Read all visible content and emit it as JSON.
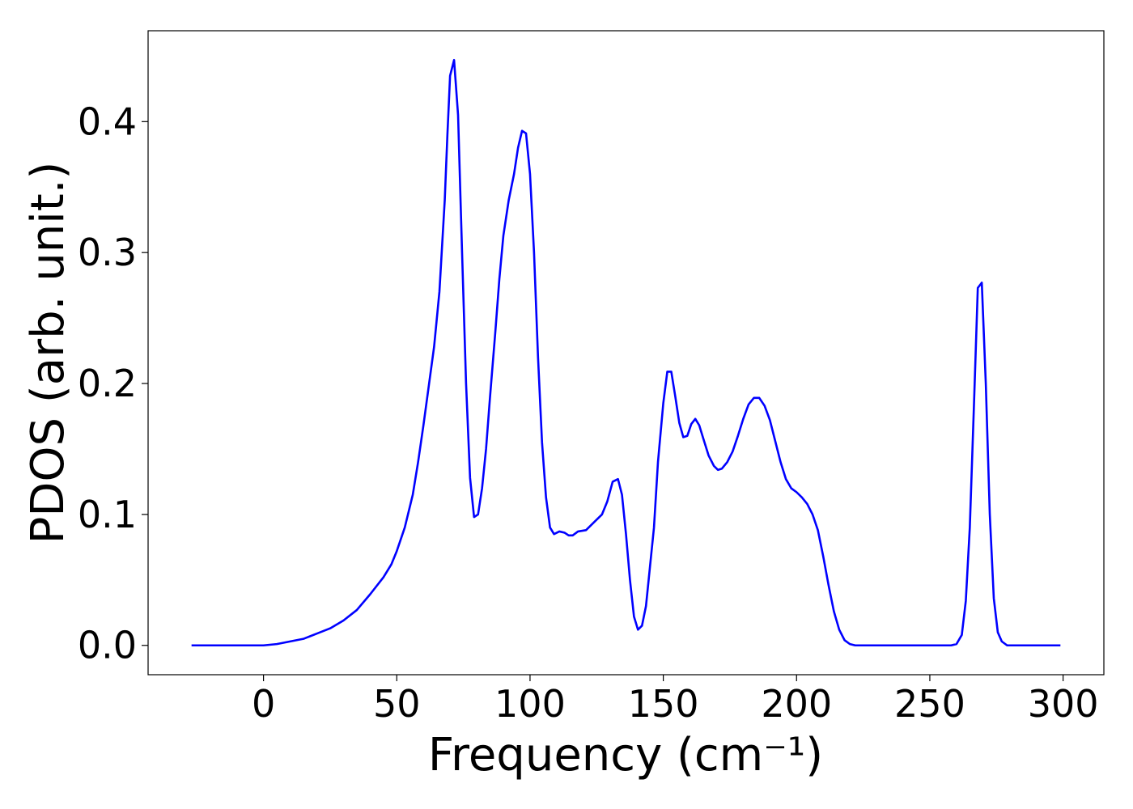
{
  "chart_data": {
    "type": "line",
    "xlabel": "Frequency (cm⁻¹)",
    "ylabel": "PDOS (arb. unit.)",
    "color": "#0000ff",
    "xlim": [
      -43.3,
      315.3
    ],
    "ylim": [
      -0.0224,
      0.4694
    ],
    "xticks": [
      0,
      50,
      100,
      150,
      200,
      250,
      300
    ],
    "yticks": [
      {
        "value": 0,
        "label": "0.0"
      },
      {
        "value": 0.1,
        "label": "0.1"
      },
      {
        "value": 0.2,
        "label": "0.2"
      },
      {
        "value": 0.3,
        "label": "0.3"
      },
      {
        "value": 0.4,
        "label": "0.4"
      }
    ],
    "x": [
      -27,
      -20,
      -10,
      0,
      5,
      10,
      15,
      20,
      25,
      30,
      35,
      40,
      45,
      48,
      50,
      53,
      56,
      58,
      60,
      62,
      64,
      66,
      68,
      69,
      70,
      71.5,
      73,
      74.5,
      76,
      77.5,
      79,
      80.5,
      82,
      83.5,
      85,
      87,
      88.5,
      90,
      92,
      94,
      95.5,
      97,
      98.5,
      100,
      101.5,
      103,
      104.5,
      106,
      107.5,
      109,
      111,
      113,
      114.5,
      116,
      118,
      121,
      124,
      127,
      129,
      131,
      133,
      134.5,
      136,
      137.5,
      139,
      140.5,
      142,
      143.5,
      145,
      146.5,
      148,
      150,
      151.5,
      153,
      154.5,
      156,
      157.5,
      159,
      160.5,
      162,
      163.5,
      165,
      167,
      169,
      170.5,
      172,
      174,
      176,
      178,
      180,
      182,
      184,
      186,
      188,
      190,
      192,
      194,
      196,
      198,
      200,
      202,
      204,
      206,
      208,
      210,
      212,
      214,
      216,
      218,
      220,
      222,
      230,
      240,
      250,
      258,
      260,
      262,
      263.5,
      265,
      266.5,
      268,
      269.5,
      271,
      272.5,
      274,
      275.5,
      277,
      279,
      285,
      299
    ],
    "values": [
      0,
      0,
      0,
      0,
      0.001,
      0.003,
      0.005,
      0.009,
      0.013,
      0.019,
      0.027,
      0.039,
      0.052,
      0.062,
      0.072,
      0.09,
      0.115,
      0.14,
      0.168,
      0.198,
      0.228,
      0.27,
      0.34,
      0.39,
      0.435,
      0.447,
      0.405,
      0.3,
      0.2,
      0.128,
      0.098,
      0.1,
      0.12,
      0.15,
      0.19,
      0.24,
      0.28,
      0.313,
      0.34,
      0.36,
      0.38,
      0.393,
      0.391,
      0.36,
      0.3,
      0.22,
      0.155,
      0.113,
      0.09,
      0.085,
      0.087,
      0.086,
      0.084,
      0.084,
      0.087,
      0.088,
      0.094,
      0.1,
      0.11,
      0.125,
      0.127,
      0.115,
      0.085,
      0.05,
      0.022,
      0.012,
      0.015,
      0.03,
      0.06,
      0.09,
      0.14,
      0.185,
      0.209,
      0.209,
      0.19,
      0.17,
      0.159,
      0.16,
      0.169,
      0.173,
      0.168,
      0.158,
      0.145,
      0.137,
      0.134,
      0.135,
      0.14,
      0.148,
      0.16,
      0.173,
      0.184,
      0.189,
      0.189,
      0.183,
      0.172,
      0.156,
      0.14,
      0.127,
      0.12,
      0.117,
      0.113,
      0.108,
      0.1,
      0.088,
      0.068,
      0.046,
      0.026,
      0.012,
      0.004,
      0.001,
      0,
      0,
      0,
      0,
      0,
      0.001,
      0.008,
      0.034,
      0.09,
      0.18,
      0.273,
      0.277,
      0.2,
      0.1,
      0.036,
      0.01,
      0.003,
      0,
      0,
      0
    ]
  }
}
